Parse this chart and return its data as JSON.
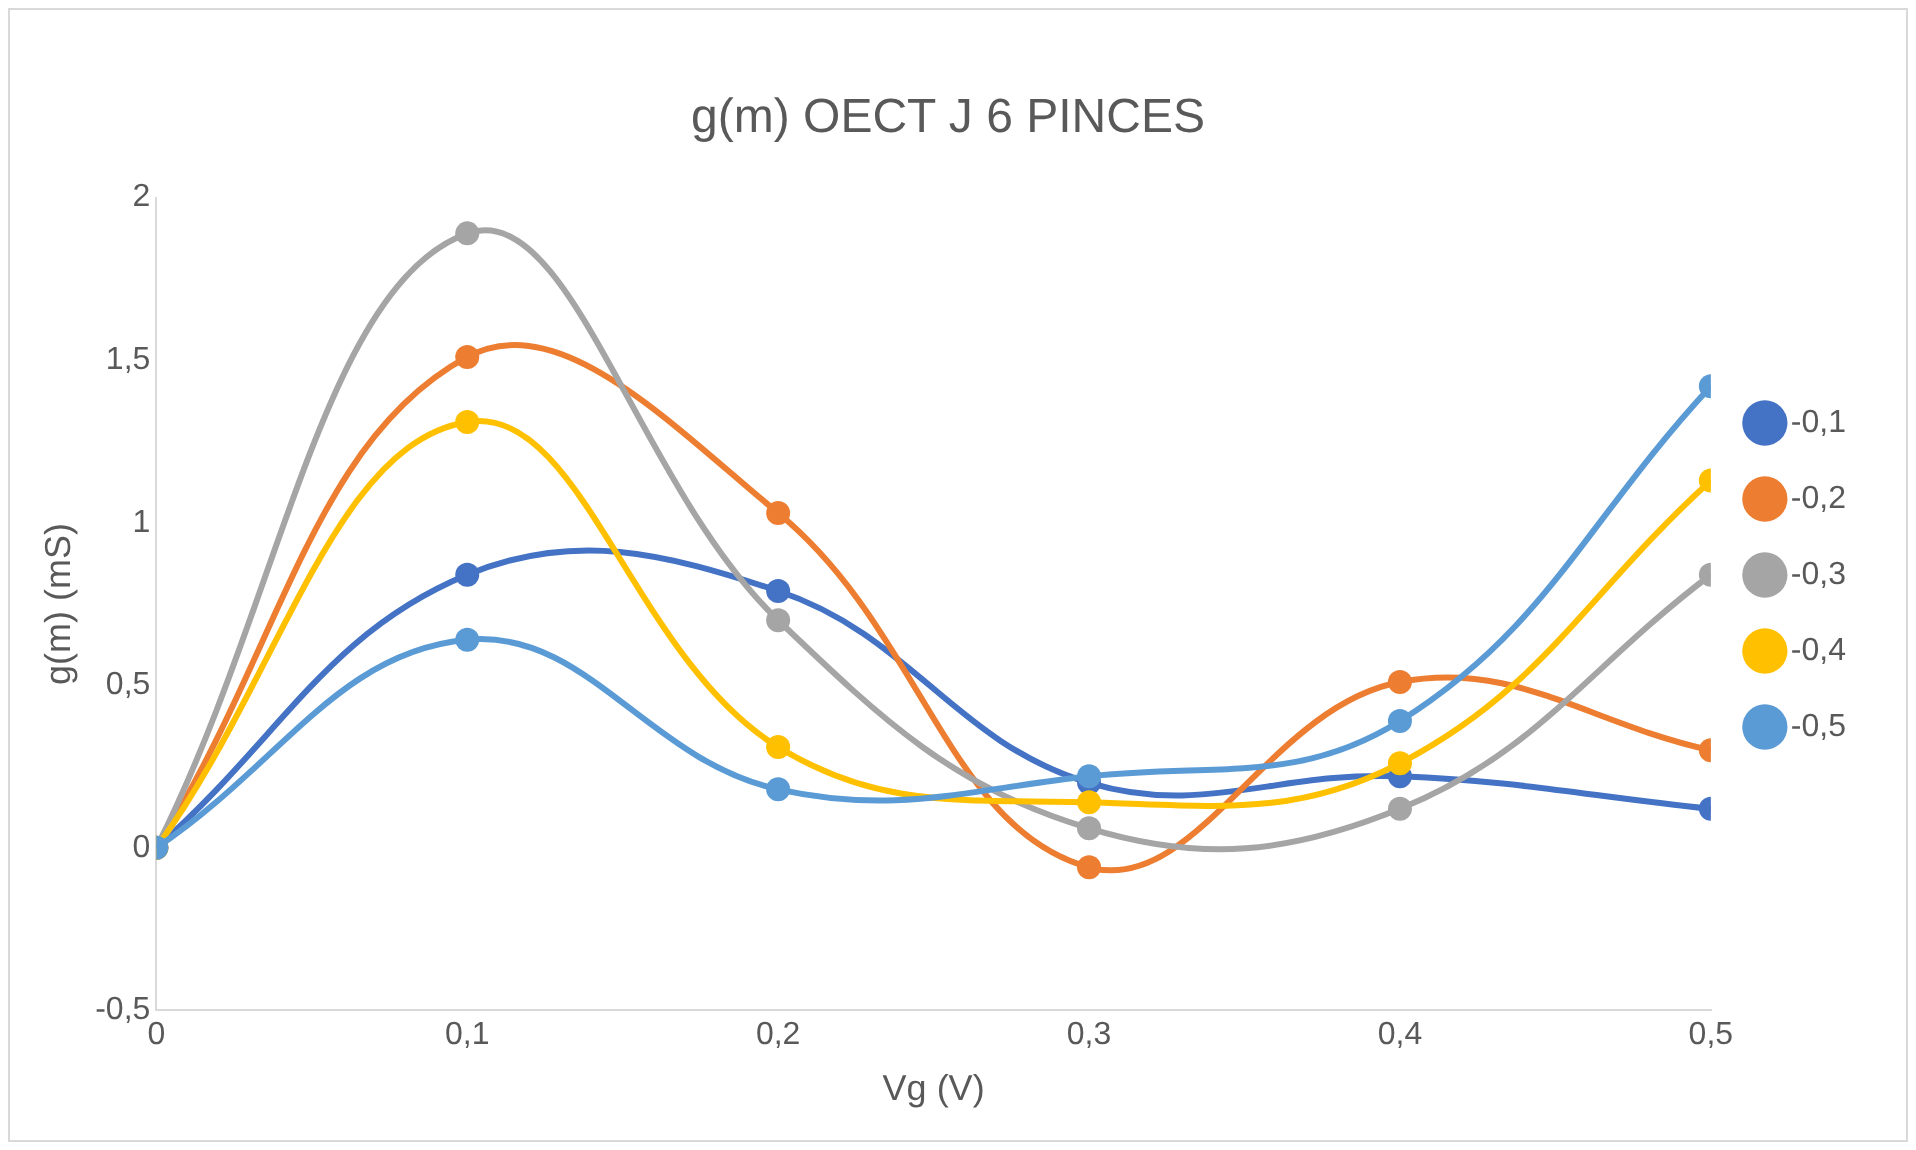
{
  "chart_data": {
    "type": "line",
    "title": "g(m) OECT J 6 PINCES",
    "xlabel": "Vg (V)",
    "ylabel": "g(m) (mS)",
    "x": [
      0,
      0.1,
      0.2,
      0.3,
      0.4,
      0.5
    ],
    "xlim": [
      0,
      0.5
    ],
    "xticks": [
      0,
      {
        "value": 0.1,
        "label": "0,1"
      },
      {
        "value": 0.2,
        "label": "0,2"
      },
      {
        "value": 0.3,
        "label": "0,3"
      },
      {
        "value": 0.4,
        "label": "0,4"
      },
      {
        "value": 0.5,
        "label": "0,5"
      }
    ],
    "ylim": [
      -0.5,
      2
    ],
    "yticks": [
      {
        "value": -0.5,
        "label": "-0,5"
      },
      0,
      {
        "value": 0.5,
        "label": "0,5"
      },
      1,
      {
        "value": 1.5,
        "label": "1,5"
      },
      2
    ],
    "grid": false,
    "legend": "right",
    "marker": "circle",
    "line_style": "solid",
    "series": [
      {
        "name": "-0,1",
        "color": "#4472c4",
        "values": [
          0,
          0.84,
          0.79,
          0.2,
          0.22,
          0.12
        ]
      },
      {
        "name": "-0,2",
        "color": "#ed7d31",
        "values": [
          0,
          1.51,
          1.03,
          -0.06,
          0.51,
          0.3
        ]
      },
      {
        "name": "-0,3",
        "color": "#a5a5a5",
        "values": [
          0,
          1.89,
          0.7,
          0.06,
          0.12,
          0.84
        ]
      },
      {
        "name": "-0,4",
        "color": "#ffc000",
        "values": [
          0,
          1.31,
          0.31,
          0.14,
          0.26,
          1.13
        ]
      },
      {
        "name": "-0,5",
        "color": "#5b9bd5",
        "values": [
          0,
          0.64,
          0.18,
          0.22,
          0.39,
          1.42
        ]
      }
    ]
  }
}
